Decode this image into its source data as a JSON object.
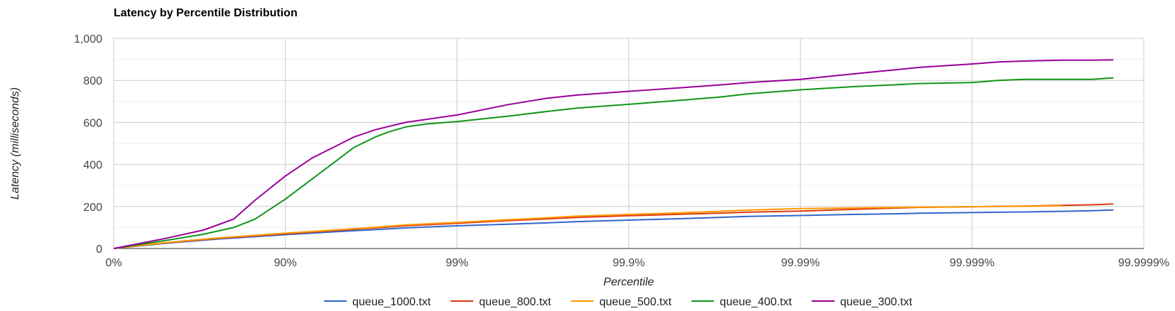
{
  "chart_data": {
    "type": "line",
    "title": "Latency by Percentile Distribution",
    "xlabel": "Percentile",
    "ylabel": "Latency (milliseconds)",
    "ylim": [
      0,
      1000
    ],
    "y_ticks": [
      0,
      200,
      400,
      600,
      800,
      1000
    ],
    "y_tick_labels": [
      "0",
      "200",
      "400",
      "600",
      "800",
      "1,000"
    ],
    "x_scale": "log-1/(1-p)",
    "x_ticks": [
      0,
      90,
      99,
      99.9,
      99.99,
      99.999,
      99.9999
    ],
    "x_tick_labels": [
      "0%",
      "90%",
      "99%",
      "99.9%",
      "99.99%",
      "99.999%",
      "99.9999%"
    ],
    "grid": true,
    "legend_position": "bottom",
    "series": [
      {
        "name": "queue_1000.txt",
        "color": "#3366cc",
        "x": [
          0,
          50,
          75,
          90,
          95,
          97,
          98,
          99,
          99.5,
          99.7,
          99.8,
          99.9,
          99.95,
          99.97,
          99.98,
          99.99,
          99.995,
          99.997,
          99.998,
          99.999,
          99.9995,
          99.9997,
          99.9998,
          99.99985
        ],
        "y": [
          0,
          25,
          45,
          66,
          80,
          90,
          98,
          108,
          116,
          122,
          128,
          135,
          142,
          148,
          153,
          157,
          162,
          165,
          168,
          171,
          174,
          177,
          180,
          183
        ]
      },
      {
        "name": "queue_800.txt",
        "color": "#dc3912",
        "x": [
          0,
          50,
          75,
          90,
          95,
          97,
          98,
          99,
          99.5,
          99.7,
          99.8,
          99.9,
          99.95,
          99.97,
          99.98,
          99.99,
          99.995,
          99.997,
          99.998,
          99.999,
          99.9995,
          99.9997,
          99.9998,
          99.99985
        ],
        "y": [
          0,
          27,
          48,
          70,
          86,
          98,
          108,
          120,
          133,
          141,
          148,
          156,
          163,
          168,
          173,
          178,
          186,
          192,
          196,
          199,
          202,
          205,
          208,
          212
        ]
      },
      {
        "name": "queue_500.txt",
        "color": "#ff9900",
        "x": [
          0,
          50,
          75,
          90,
          95,
          97,
          98,
          99,
          99.5,
          99.7,
          99.8,
          99.9,
          99.95,
          99.97,
          99.98,
          99.99,
          99.995,
          99.997,
          99.998,
          99.999,
          99.9995,
          99.9997
        ],
        "y": [
          0,
          28,
          50,
          73,
          89,
          101,
          112,
          124,
          137,
          146,
          154,
          162,
          170,
          177,
          183,
          190,
          193,
          195,
          197,
          199,
          201,
          203
        ]
      },
      {
        "name": "queue_400.txt",
        "color": "#109618",
        "x": [
          0,
          50,
          70,
          80,
          85,
          90,
          93,
          95,
          96,
          97,
          97.5,
          98,
          98.5,
          99,
          99.5,
          99.7,
          99.8,
          99.9,
          99.95,
          99.97,
          99.98,
          99.99,
          99.995,
          99.997,
          99.998,
          99.999,
          99.9993,
          99.9995,
          99.9997,
          99.9998,
          99.99985
        ],
        "y": [
          0,
          38,
          68,
          100,
          140,
          235,
          330,
          420,
          480,
          530,
          555,
          578,
          593,
          604,
          630,
          652,
          668,
          686,
          705,
          720,
          736,
          755,
          770,
          778,
          785,
          790,
          800,
          805,
          805,
          805,
          812
        ]
      },
      {
        "name": "queue_300.txt",
        "color": "#990099",
        "x": [
          0,
          50,
          70,
          80,
          85,
          90,
          93,
          95,
          96,
          97,
          98,
          99,
          99.5,
          99.7,
          99.8,
          99.9,
          99.95,
          99.97,
          99.98,
          99.99,
          99.995,
          99.997,
          99.998,
          99.999,
          99.9993,
          99.9995,
          99.9997,
          99.9998,
          99.99985
        ],
        "y": [
          0,
          48,
          88,
          140,
          230,
          345,
          430,
          490,
          530,
          565,
          600,
          635,
          685,
          715,
          730,
          748,
          765,
          778,
          790,
          805,
          830,
          848,
          862,
          878,
          888,
          892,
          896,
          896,
          898
        ]
      }
    ]
  }
}
